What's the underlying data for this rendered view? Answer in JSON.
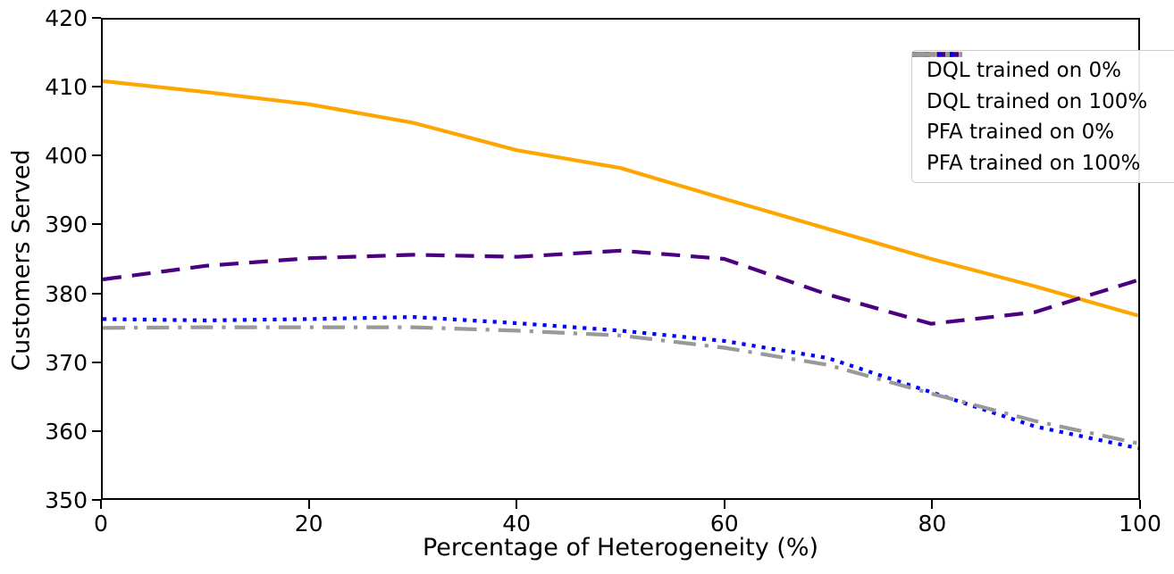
{
  "figure": {
    "background_color": "#ffffff",
    "axis_color": "#000000"
  },
  "chart_data": {
    "type": "line",
    "title": "",
    "xlabel": "Percentage of Heterogeneity (%)",
    "ylabel": "Customers Served",
    "xlim": [
      0,
      100
    ],
    "ylim": [
      350,
      420
    ],
    "xticks": [
      0,
      20,
      40,
      60,
      80,
      100
    ],
    "yticks": [
      350,
      360,
      370,
      380,
      390,
      400,
      410,
      420
    ],
    "grid": false,
    "legend_position": "upper right",
    "x": [
      0,
      10,
      20,
      30,
      40,
      50,
      60,
      70,
      80,
      90,
      100
    ],
    "series": [
      {
        "name": "DQL trained on 0%",
        "color": "#FFA500",
        "style": "solid",
        "values": [
          411.0,
          409.4,
          407.6,
          404.9,
          400.9,
          398.3,
          393.8,
          389.4,
          385.0,
          381.0,
          376.7
        ]
      },
      {
        "name": "DQL trained on 100%",
        "color": "#4B0082",
        "style": "dashed",
        "values": [
          382.0,
          384.0,
          385.1,
          385.6,
          385.3,
          386.2,
          385.0,
          379.8,
          375.5,
          377.2,
          381.9
        ]
      },
      {
        "name": "PFA trained on 0%",
        "color": "#0000FF",
        "style": "dotted",
        "values": [
          376.2,
          376.0,
          376.2,
          376.5,
          375.6,
          374.5,
          373.0,
          370.5,
          365.5,
          360.5,
          357.3
        ]
      },
      {
        "name": "PFA trained on 100%",
        "color": "#999999",
        "style": "dashdot",
        "values": [
          374.9,
          375.0,
          375.0,
          375.0,
          374.5,
          373.8,
          372.0,
          369.5,
          365.3,
          361.3,
          358.0
        ]
      }
    ]
  }
}
